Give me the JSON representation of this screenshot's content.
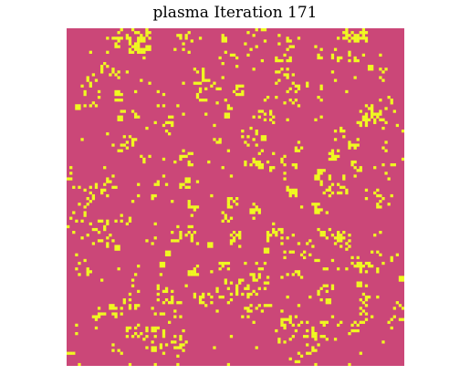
{
  "title": "plasma Iteration 171",
  "colors": {
    "dead": "#CB4778",
    "alive": "#F0F921",
    "background": "#ffffff"
  },
  "grid_size": 120,
  "density": 0.12
}
